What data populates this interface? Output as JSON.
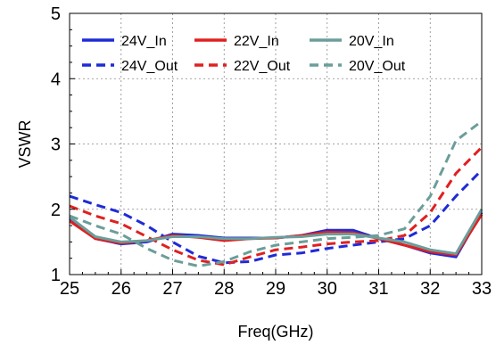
{
  "chart_data": {
    "type": "line",
    "xlabel": "Freq(GHz)",
    "ylabel": "VSWR",
    "xlim": [
      25,
      33
    ],
    "ylim": [
      1,
      5
    ],
    "xticks": [
      "25",
      "26",
      "27",
      "28",
      "29",
      "30",
      "31",
      "32",
      "33"
    ],
    "yticks": [
      "1",
      "2",
      "3",
      "4",
      "5"
    ],
    "grid": true,
    "legend_position": "top",
    "series": [
      {
        "name": "24V_In",
        "color": "#1f2bd6",
        "dashed": false,
        "x": [
          25,
          25.5,
          26,
          26.5,
          27,
          27.5,
          28,
          28.5,
          29,
          29.5,
          30,
          30.5,
          31,
          31.5,
          32,
          32.5,
          33
        ],
        "y": [
          1.85,
          1.55,
          1.47,
          1.5,
          1.62,
          1.6,
          1.56,
          1.56,
          1.56,
          1.6,
          1.68,
          1.68,
          1.55,
          1.45,
          1.33,
          1.27,
          1.95
        ]
      },
      {
        "name": "24V_Out",
        "color": "#1f2bd6",
        "dashed": true,
        "x": [
          25,
          25.5,
          26,
          26.5,
          27,
          27.5,
          28,
          28.5,
          29,
          29.5,
          30,
          30.5,
          31,
          31.5,
          32,
          32.5,
          33
        ],
        "y": [
          2.2,
          2.07,
          1.95,
          1.75,
          1.5,
          1.28,
          1.18,
          1.2,
          1.3,
          1.33,
          1.4,
          1.45,
          1.5,
          1.55,
          1.75,
          2.2,
          2.6
        ]
      },
      {
        "name": "22V_In",
        "color": "#e02020",
        "dashed": false,
        "x": [
          25,
          25.5,
          26,
          26.5,
          27,
          27.5,
          28,
          28.5,
          29,
          29.5,
          30,
          30.5,
          31,
          31.5,
          32,
          32.5,
          33
        ],
        "y": [
          1.82,
          1.55,
          1.48,
          1.52,
          1.6,
          1.57,
          1.52,
          1.55,
          1.56,
          1.6,
          1.65,
          1.64,
          1.55,
          1.45,
          1.35,
          1.3,
          1.92
        ]
      },
      {
        "name": "22V_Out",
        "color": "#e02020",
        "dashed": true,
        "x": [
          25,
          25.5,
          26,
          26.5,
          27,
          27.5,
          28,
          28.5,
          29,
          29.5,
          30,
          30.5,
          31,
          31.5,
          32,
          32.5,
          33
        ],
        "y": [
          2.05,
          1.9,
          1.78,
          1.58,
          1.38,
          1.22,
          1.15,
          1.27,
          1.38,
          1.42,
          1.47,
          1.5,
          1.52,
          1.6,
          1.95,
          2.55,
          2.95
        ]
      },
      {
        "name": "20V_In",
        "color": "#6b9e9a",
        "dashed": false,
        "x": [
          25,
          25.5,
          26,
          26.5,
          27,
          27.5,
          28,
          28.5,
          29,
          29.5,
          30,
          30.5,
          31,
          31.5,
          32,
          32.5,
          33
        ],
        "y": [
          1.88,
          1.58,
          1.5,
          1.52,
          1.58,
          1.58,
          1.55,
          1.55,
          1.57,
          1.58,
          1.62,
          1.62,
          1.56,
          1.5,
          1.38,
          1.32,
          2.0
        ]
      },
      {
        "name": "20V_Out",
        "color": "#6b9e9a",
        "dashed": true,
        "x": [
          25,
          25.5,
          26,
          26.5,
          27,
          27.5,
          28,
          28.5,
          29,
          29.5,
          30,
          30.5,
          31,
          31.5,
          32,
          32.5,
          33
        ],
        "y": [
          1.9,
          1.75,
          1.62,
          1.4,
          1.22,
          1.13,
          1.2,
          1.35,
          1.45,
          1.5,
          1.55,
          1.57,
          1.6,
          1.7,
          2.2,
          3.05,
          3.35
        ]
      }
    ]
  }
}
